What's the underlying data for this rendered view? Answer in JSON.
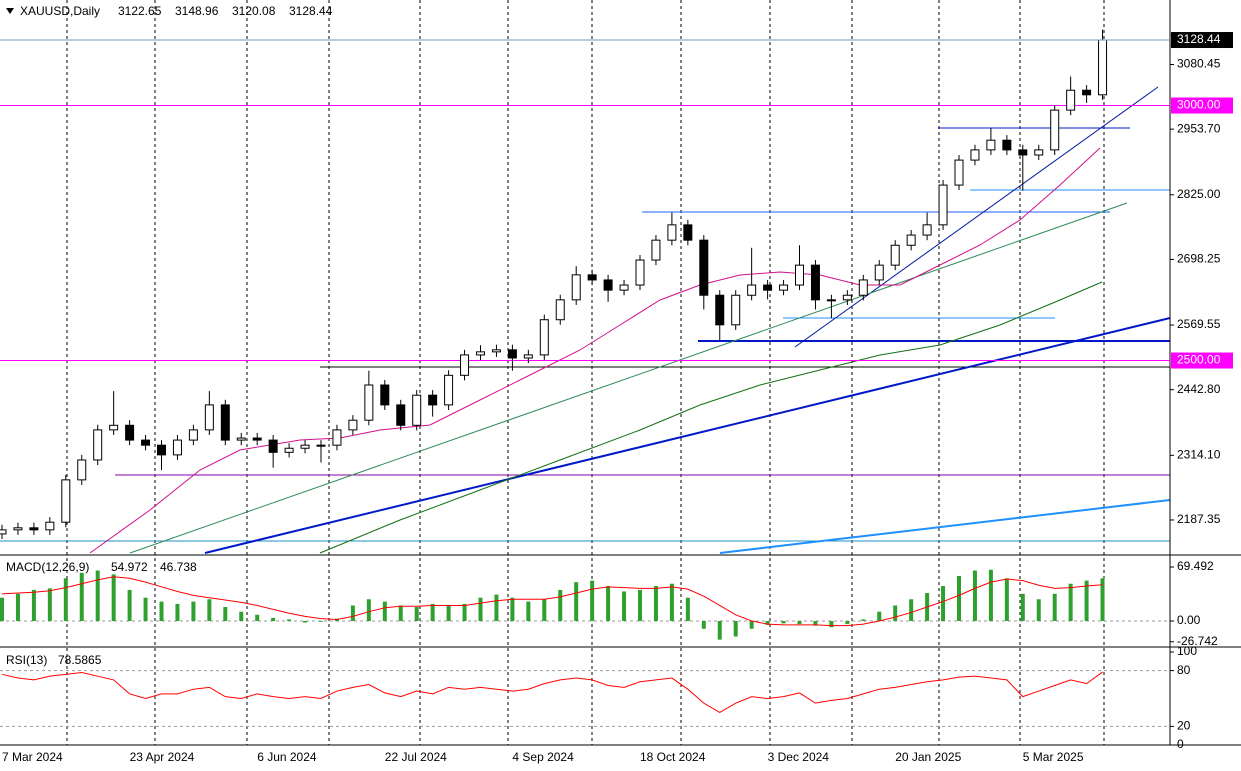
{
  "chart_data": [
    {
      "type": "candlestick",
      "symbol": "XAUUSD,Daily",
      "header_values": [
        3122.65,
        3148.96,
        3120.08,
        3128.44
      ],
      "categories": [
        "7 Mar 2024",
        null,
        null,
        null,
        null,
        null,
        null,
        null,
        "23 Apr 2024",
        null,
        null,
        null,
        null,
        null,
        null,
        null,
        "6 Jun 2024",
        null,
        null,
        null,
        null,
        null,
        null,
        null,
        "22 Jul 2024",
        null,
        null,
        null,
        null,
        null,
        null,
        null,
        "4 Sep 2024",
        null,
        null,
        null,
        null,
        null,
        null,
        null,
        "18 Oct 2024",
        null,
        null,
        null,
        null,
        null,
        null,
        null,
        "3 Dec 2024",
        null,
        null,
        null,
        null,
        null,
        null,
        null,
        "20 Jan 2025",
        null,
        null,
        null,
        null,
        null,
        null,
        null,
        "5 Mar 2025",
        null,
        null,
        null,
        null,
        null
      ],
      "open": [
        2160,
        2168,
        2172,
        2168,
        2183,
        2266,
        2305,
        2364,
        2373,
        2344,
        2334,
        2315,
        2344,
        2364,
        2413,
        2344,
        2348,
        2344,
        2320,
        2328,
        2334,
        2334,
        2364,
        2383,
        2452,
        2413,
        2373,
        2432,
        2413,
        2471,
        2511,
        2517,
        2521,
        2505,
        2511,
        2580,
        2619,
        2668,
        2658,
        2638,
        2648,
        2697,
        2736,
        2766,
        2736,
        2628,
        2570,
        2628,
        2648,
        2638,
        2648,
        2687,
        2619,
        2619,
        2628,
        2658,
        2687,
        2726,
        2746,
        2766,
        2844,
        2893,
        2913,
        2932,
        2913,
        2903,
        2913,
        2991,
        3030,
        3021
      ],
      "high": [
        2178,
        2182,
        2182,
        2193,
        2276,
        2315,
        2374,
        2440,
        2383,
        2354,
        2344,
        2354,
        2374,
        2440,
        2423,
        2358,
        2358,
        2354,
        2338,
        2344,
        2344,
        2374,
        2393,
        2480,
        2462,
        2423,
        2442,
        2442,
        2481,
        2521,
        2530,
        2531,
        2531,
        2521,
        2590,
        2629,
        2685,
        2678,
        2668,
        2658,
        2707,
        2746,
        2790,
        2776,
        2746,
        2638,
        2638,
        2721,
        2658,
        2658,
        2726,
        2697,
        2629,
        2638,
        2668,
        2697,
        2736,
        2756,
        2790,
        2854,
        2903,
        2923,
        2956,
        2942,
        2923,
        2923,
        3001,
        3057,
        3040,
        3148.96
      ],
      "low": [
        2150,
        2158,
        2158,
        2158,
        2173,
        2256,
        2295,
        2354,
        2334,
        2324,
        2285,
        2305,
        2334,
        2354,
        2334,
        2334,
        2334,
        2290,
        2310,
        2318,
        2300,
        2324,
        2354,
        2373,
        2403,
        2363,
        2363,
        2390,
        2403,
        2461,
        2501,
        2507,
        2480,
        2495,
        2501,
        2570,
        2609,
        2648,
        2615,
        2628,
        2638,
        2687,
        2726,
        2726,
        2600,
        2540,
        2560,
        2618,
        2620,
        2628,
        2638,
        2600,
        2583,
        2609,
        2618,
        2648,
        2677,
        2716,
        2736,
        2756,
        2834,
        2883,
        2903,
        2903,
        2833,
        2893,
        2903,
        2981,
        3005,
        3011
      ],
      "close": [
        2168,
        2172,
        2168,
        2183,
        2266,
        2305,
        2364,
        2373,
        2344,
        2334,
        2315,
        2344,
        2364,
        2413,
        2344,
        2348,
        2344,
        2320,
        2328,
        2334,
        2334,
        2364,
        2383,
        2452,
        2413,
        2373,
        2432,
        2413,
        2471,
        2511,
        2517,
        2521,
        2505,
        2511,
        2580,
        2619,
        2668,
        2658,
        2638,
        2648,
        2697,
        2736,
        2766,
        2736,
        2628,
        2570,
        2628,
        2648,
        2638,
        2648,
        2687,
        2619,
        2619,
        2628,
        2658,
        2687,
        2726,
        2746,
        2766,
        2844,
        2893,
        2913,
        2932,
        2913,
        2903,
        2913,
        2991,
        3030,
        3021,
        3128.44
      ],
      "up_color": "#ffffff",
      "down_color": "#000000",
      "ylim": [
        2122.6,
        3206.9
      ],
      "yticks": [
        {
          "value": 2187.35,
          "label": "2187.35"
        },
        {
          "value": 2314.1,
          "label": "2314.10"
        },
        {
          "value": 2442.8,
          "label": "2442.80"
        },
        2569.55,
        2698.25,
        {
          "value": 2825,
          "label": "2825.00"
        },
        {
          "value": 2953.7,
          "label": "2953.70"
        },
        3080.45
      ],
      "hlines": [
        {
          "value": 3000,
          "label": "3000.00",
          "color": "#ff00ff"
        },
        {
          "value": 2500,
          "label": "2500.00",
          "color": "#ff00ff"
        }
      ]
    },
    {
      "type": "macd",
      "title": "MACD(12,26,9)",
      "histogram": {
        "color": "#2ea02e",
        "values": [
          30,
          35,
          40,
          42,
          55,
          62,
          65,
          60,
          40,
          30,
          25,
          22,
          25,
          28,
          18,
          12,
          8,
          4,
          2,
          -2,
          -1,
          3,
          20,
          28,
          25,
          20,
          18,
          22,
          20,
          22,
          30,
          34,
          30,
          25,
          28,
          40,
          50,
          52,
          45,
          38,
          40,
          45,
          48,
          30,
          -10,
          -24,
          -20,
          -10,
          -5,
          -3,
          -4,
          -6,
          -8,
          -4,
          2,
          12,
          20,
          28,
          36,
          45,
          58,
          65,
          66,
          55,
          35,
          28,
          35,
          48,
          52,
          54.972
        ]
      },
      "signal": {
        "color": "#ff0000",
        "values": [
          35,
          36,
          37,
          39,
          43,
          48,
          53,
          57,
          55,
          50,
          44,
          38,
          33,
          30,
          27,
          24,
          20,
          15,
          10,
          6,
          3,
          2,
          6,
          12,
          17,
          19,
          19,
          20,
          20,
          20,
          23,
          26,
          28,
          28,
          28,
          31,
          36,
          41,
          44,
          43,
          42,
          42,
          44,
          41,
          32,
          20,
          8,
          0,
          -4,
          -5,
          -5,
          -5,
          -6,
          -6,
          -4,
          0,
          5,
          11,
          18,
          25,
          33,
          42,
          50,
          54,
          52,
          46,
          42,
          43,
          45,
          46.738
        ]
      },
      "ylim": [
        -30.9,
        82.4
      ],
      "yticks": [
        69.492,
        {
          "value": 0,
          "label": "0.00"
        },
        -26.742
      ],
      "levels": [
        0
      ]
    },
    {
      "type": "line",
      "title": "RSI(13)",
      "color": "#ff0000",
      "values": [
        76,
        72,
        70,
        74,
        76,
        78,
        74,
        70,
        55,
        50,
        55,
        55,
        60,
        62,
        52,
        50,
        55,
        52,
        50,
        52,
        50,
        58,
        62,
        65,
        56,
        52,
        58,
        55,
        62,
        60,
        62,
        60,
        58,
        60,
        66,
        70,
        72,
        70,
        64,
        62,
        68,
        70,
        72,
        60,
        45,
        35,
        45,
        52,
        50,
        52,
        56,
        45,
        48,
        50,
        55,
        60,
        62,
        65,
        68,
        70,
        73,
        74,
        72,
        70,
        52,
        58,
        64,
        70,
        66,
        78.5865
      ],
      "ylim": [
        0,
        100
      ],
      "yticks": [
        0,
        20,
        80,
        100
      ],
      "levels": [
        20,
        80
      ]
    }
  ]
}
